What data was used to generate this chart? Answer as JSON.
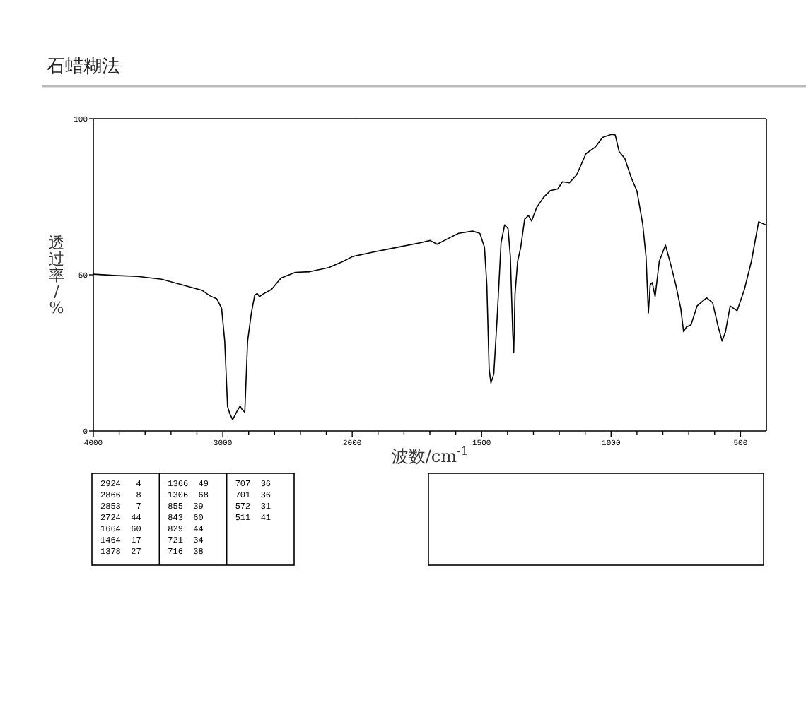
{
  "chart_data": [
    {
      "type": "line",
      "title": "石蜡糊法",
      "ylabel": "透过率/%",
      "x": [
        4000,
        3841,
        3657,
        3472,
        3288,
        3159,
        3100,
        3046,
        3009,
        2985,
        2963,
        2945,
        2924,
        2890,
        2866,
        2853,
        2830,
        2808,
        2779,
        2753,
        2734,
        2716,
        2690,
        2624,
        2550,
        2439,
        2328,
        2181,
        2070,
        2000
      ],
      "series": [
        {
          "color": "#000000",
          "values": [
            50.2,
            49.8,
            49.5,
            48.6,
            46.5,
            45,
            43.3,
            42.3,
            39.3,
            28.8,
            7.8,
            5.5,
            3.6,
            6.3,
            8,
            7,
            6,
            28.8,
            37.8,
            43.5,
            44,
            43,
            43.8,
            45.3,
            49,
            50.8,
            51,
            52.3,
            54.3,
            55.8
          ]
        }
      ],
      "xlim": [
        4000,
        2000
      ],
      "xticks": [
        4000,
        {
          "value": 3800,
          "label": null
        },
        {
          "value": 3600,
          "label": null
        },
        {
          "value": 3400,
          "label": null
        },
        {
          "value": 3200,
          "label": null
        },
        3000,
        {
          "value": 2800,
          "label": null
        },
        {
          "value": 2600,
          "label": null
        },
        {
          "value": 2400,
          "label": null
        },
        {
          "value": 2200,
          "label": null
        },
        2000
      ],
      "ylim": [
        0,
        100
      ],
      "yticks": [
        0,
        50,
        100
      ],
      "annotations": [
        "2924   4",
        "2866   8",
        "2853   7",
        "2724  44",
        "1664  60",
        "1464  17",
        "1378  27",
        "1366  49",
        "1306  68",
        "855  39",
        "843  60",
        "829  44",
        "721  34",
        "716  38",
        "707  36",
        "701  36",
        "572  31",
        "511  41"
      ]
    },
    {
      "type": "line",
      "xlabel": "波数/cm$^{-1}$",
      "x": [
        2000,
        1991,
        1918,
        1827,
        1735,
        1699,
        1672,
        1644,
        1589,
        1535,
        1507,
        1489,
        1480,
        1471,
        1464,
        1453,
        1440,
        1425,
        1411,
        1398,
        1389,
        1380,
        1376,
        1371,
        1361,
        1349,
        1334,
        1319,
        1307,
        1288,
        1261,
        1234,
        1206,
        1188,
        1161,
        1133,
        1097,
        1060,
        1033,
        997,
        984,
        969,
        947,
        923,
        900,
        878,
        865,
        856,
        849,
        841,
        830,
        814,
        790,
        768,
        750,
        731,
        720,
        709,
        691,
        668,
        631,
        608,
        586,
        571,
        558,
        540,
        513,
        485,
        458,
        430,
        403
      ],
      "series": [
        {
          "color": "#000000",
          "values": [
            55.8,
            56,
            57.3,
            58.8,
            60.3,
            61,
            59.8,
            61,
            63.3,
            64,
            63.3,
            58.8,
            46.8,
            19.8,
            15.3,
            18.3,
            36.3,
            60.3,
            66,
            64.8,
            55.8,
            31.8,
            25,
            43.8,
            54.3,
            58.8,
            67.8,
            69,
            67.2,
            71.5,
            74.8,
            77,
            77.5,
            79.8,
            79.5,
            82,
            88.8,
            91,
            94,
            95,
            94.8,
            89.5,
            87.3,
            81.3,
            76.8,
            66.3,
            55.8,
            37.8,
            46.8,
            47.5,
            43,
            54.3,
            59.5,
            52.8,
            46.8,
            39.3,
            31.8,
            33.3,
            34,
            40,
            42.6,
            41.1,
            33.3,
            28.8,
            31.8,
            40,
            38.5,
            45.3,
            54.3,
            67,
            66
          ]
        }
      ],
      "xlim": [
        2000,
        400
      ],
      "xticks": [
        {
          "value": 1900,
          "label": null
        },
        {
          "value": 1800,
          "label": null
        },
        {
          "value": 1700,
          "label": null
        },
        {
          "value": 1600,
          "label": null
        },
        1500,
        {
          "value": 1400,
          "label": null
        },
        {
          "value": 1300,
          "label": null
        },
        {
          "value": 1200,
          "label": null
        },
        {
          "value": 1100,
          "label": null
        },
        1000,
        {
          "value": 900,
          "label": null
        },
        {
          "value": 800,
          "label": null
        },
        {
          "value": 700,
          "label": null
        },
        {
          "value": 600,
          "label": null
        },
        500
      ],
      "ylim": [
        0,
        100
      ],
      "tick_labels": "x"
    }
  ]
}
